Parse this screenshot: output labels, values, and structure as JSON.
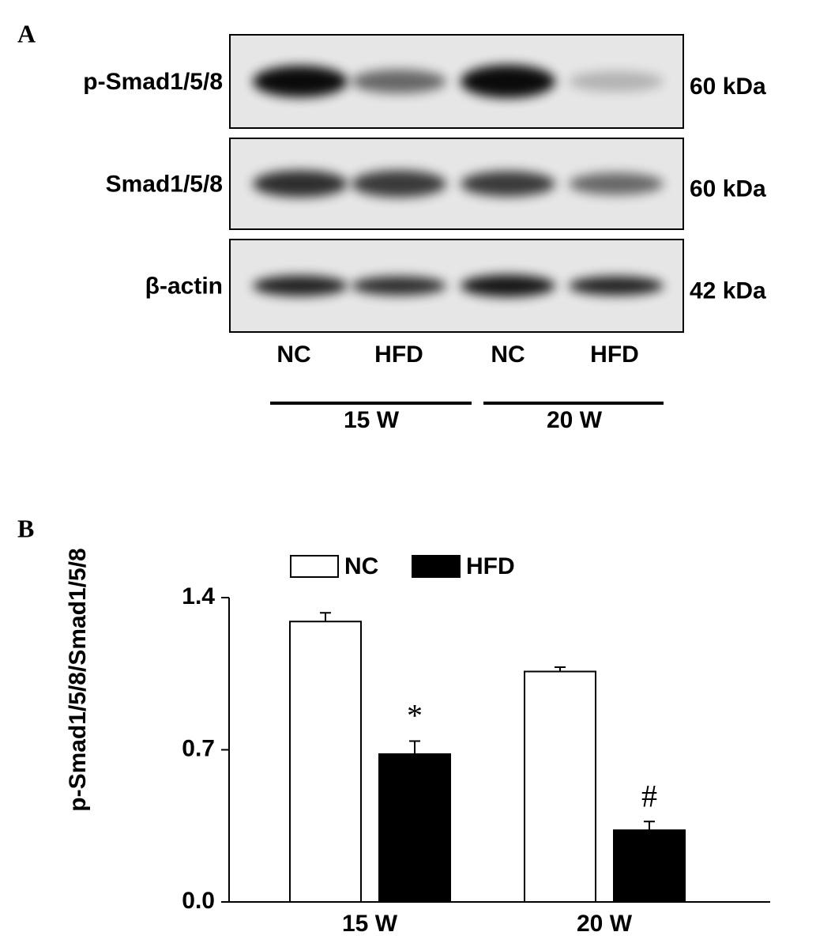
{
  "panels": {
    "a": "A",
    "b": "B"
  },
  "blot": {
    "rows": [
      {
        "protein": "p-Smad1/5/8",
        "size": "60 kDa"
      },
      {
        "protein": "Smad1/5/8",
        "size": "60 kDa"
      },
      {
        "protein": "β-actin",
        "size": "42 kDa"
      }
    ],
    "lanes": [
      "NC",
      "HFD",
      "NC",
      "HFD"
    ],
    "groups": [
      "15 W",
      "20 W"
    ]
  },
  "chart_data": {
    "type": "bar",
    "y_label": "p-Smad1/5/8/Smad1/5/8",
    "categories": [
      "15 W",
      "20 W"
    ],
    "series": [
      {
        "name": "NC",
        "color": "#ffffff",
        "values": [
          1.29,
          1.06
        ],
        "errors": [
          0.04,
          0.02
        ]
      },
      {
        "name": "HFD",
        "color": "#000000",
        "values": [
          0.68,
          0.33
        ],
        "errors": [
          0.06,
          0.04
        ],
        "significance": [
          "*",
          "#"
        ]
      }
    ],
    "ylim": [
      0,
      1.4
    ],
    "yticks": [
      {
        "value": 0,
        "label": "0.0"
      },
      {
        "value": 0.7,
        "label": "0.7"
      },
      {
        "value": 1.4,
        "label": "1.4"
      }
    ]
  }
}
